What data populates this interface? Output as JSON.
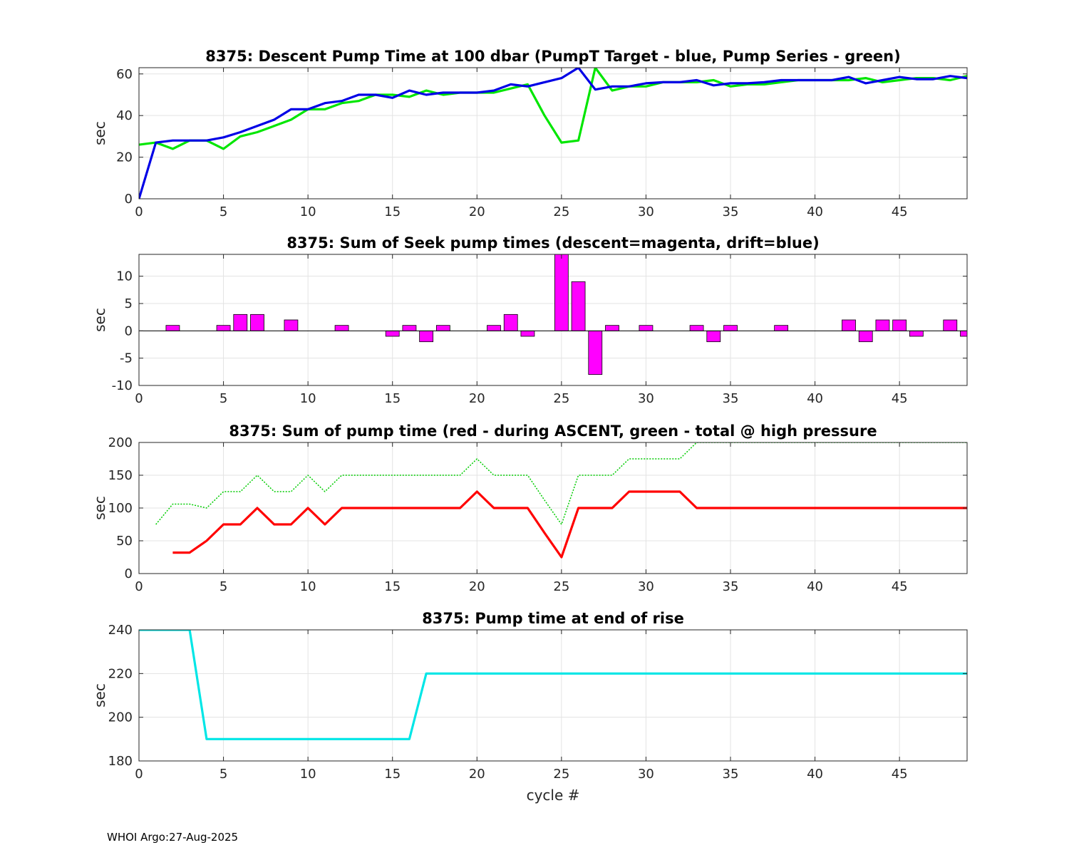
{
  "footer": "WHOI Argo:27-Aug-2025",
  "chart_data": [
    {
      "type": "line",
      "title": "8375: Descent Pump Time at 100 dbar (PumpT Target - blue, Pump Series - green)",
      "xlabel": "",
      "ylabel": "sec",
      "xlim": [
        0,
        49
      ],
      "ylim": [
        0,
        63
      ],
      "xticks": [
        0,
        5,
        10,
        15,
        20,
        25,
        30,
        35,
        40,
        45
      ],
      "yticks": [
        0,
        20,
        40,
        60
      ],
      "grid": true,
      "series": [
        {
          "color": "#00e600",
          "style": "solid",
          "x": [
            0,
            1,
            2,
            3,
            4,
            5,
            6,
            7,
            8,
            9,
            10,
            11,
            12,
            13,
            14,
            15,
            16,
            17,
            18,
            19,
            20,
            21,
            22,
            23,
            24,
            25,
            26,
            27,
            28,
            29,
            30,
            31,
            32,
            33,
            34,
            35,
            36,
            37,
            38,
            39,
            40,
            41,
            42,
            43,
            44,
            45,
            46,
            47,
            48,
            49
          ],
          "y": [
            26,
            27,
            24,
            28,
            28,
            24,
            30,
            32,
            35,
            38,
            43,
            43,
            46,
            47,
            50,
            50,
            49,
            52,
            50,
            51,
            51,
            51,
            53,
            55,
            40,
            27,
            28,
            63,
            52,
            54,
            54,
            56,
            56,
            56,
            57,
            54,
            55,
            55,
            56,
            57,
            57,
            57,
            57,
            58,
            56,
            57,
            58,
            58,
            57,
            59
          ]
        },
        {
          "color": "#0000e6",
          "style": "solid",
          "x": [
            0,
            1,
            2,
            3,
            4,
            5,
            6,
            7,
            8,
            9,
            10,
            11,
            12,
            13,
            14,
            15,
            16,
            17,
            18,
            19,
            20,
            21,
            22,
            23,
            24,
            25,
            26,
            27,
            28,
            29,
            30,
            31,
            32,
            33,
            34,
            35,
            36,
            37,
            38,
            39,
            40,
            41,
            42,
            43,
            44,
            45,
            46,
            47,
            48,
            49
          ],
          "y": [
            0,
            27,
            28,
            28,
            28,
            29.5,
            32,
            35,
            38,
            43,
            43,
            46,
            47,
            50,
            50,
            48.5,
            52,
            50,
            51,
            51,
            51,
            52,
            55,
            54,
            56,
            58,
            63,
            52.5,
            54,
            54,
            55.5,
            56,
            56,
            57,
            54.5,
            55.5,
            55.5,
            56,
            57,
            57,
            57,
            57,
            58.5,
            55.5,
            57,
            58.5,
            57.5,
            57.5,
            59,
            58
          ]
        }
      ]
    },
    {
      "type": "bar",
      "title": "8375: Sum of Seek pump times (descent=magenta, drift=blue)",
      "xlabel": "",
      "ylabel": "sec",
      "xlim": [
        0,
        49
      ],
      "ylim": [
        -10,
        14
      ],
      "xticks": [
        0,
        5,
        10,
        15,
        20,
        25,
        30,
        35,
        40,
        45
      ],
      "yticks": [
        -10,
        -5,
        0,
        5,
        10
      ],
      "grid": true,
      "series": [
        {
          "color": "#ff00ff",
          "x": [
            2,
            5,
            6,
            7,
            9,
            12,
            15,
            16,
            17,
            18,
            21,
            22,
            23,
            25,
            26,
            27,
            28,
            30,
            33,
            34,
            35,
            38,
            42,
            43,
            44,
            45,
            46,
            48,
            49
          ],
          "y": [
            1,
            1,
            3,
            3,
            2,
            1,
            -1,
            1,
            -2,
            1,
            1,
            3,
            -1,
            14,
            9,
            -8,
            1,
            1,
            1,
            -2,
            1,
            1,
            2,
            -2,
            2,
            2,
            -1,
            2,
            -1
          ]
        }
      ]
    },
    {
      "type": "line",
      "title": "8375: Sum of pump time (red - during ASCENT, green - total @ high pressure",
      "xlabel": "",
      "ylabel": "sec",
      "xlim": [
        0,
        49
      ],
      "ylim": [
        0,
        200
      ],
      "xticks": [
        0,
        5,
        10,
        15,
        20,
        25,
        30,
        35,
        40,
        45
      ],
      "yticks": [
        0,
        50,
        100,
        150,
        200
      ],
      "grid": true,
      "series": [
        {
          "color": "#00cc00",
          "style": "dotted",
          "x": [
            1,
            2,
            3,
            4,
            5,
            6,
            7,
            8,
            9,
            10,
            11,
            12,
            13,
            14,
            15,
            16,
            17,
            18,
            19,
            20,
            21,
            22,
            23,
            24,
            25,
            26,
            27,
            28,
            29,
            30,
            31,
            32,
            33,
            34,
            35,
            36,
            37,
            38,
            39,
            40,
            41,
            42,
            43,
            44,
            45,
            46,
            47,
            48,
            49
          ],
          "y": [
            75,
            106,
            106,
            100,
            125,
            125,
            150,
            125,
            125,
            150,
            125,
            150,
            150,
            150,
            150,
            150,
            150,
            150,
            150,
            175,
            150,
            150,
            150,
            112,
            75,
            150,
            150,
            150,
            175,
            175,
            175,
            175,
            200,
            200,
            200,
            200,
            200,
            200,
            200,
            200,
            200,
            200,
            200,
            200,
            200,
            200,
            200,
            200,
            200
          ]
        },
        {
          "color": "#ff0000",
          "style": "solid",
          "x": [
            2,
            3,
            4,
            5,
            6,
            7,
            8,
            9,
            10,
            11,
            12,
            13,
            14,
            15,
            16,
            17,
            18,
            19,
            20,
            21,
            22,
            23,
            24,
            25,
            26,
            27,
            28,
            29,
            30,
            31,
            32,
            33,
            34,
            35,
            36,
            37,
            38,
            39,
            40,
            41,
            42,
            43,
            44,
            45,
            46,
            47,
            48,
            49
          ],
          "y": [
            32,
            32,
            50,
            75,
            75,
            100,
            75,
            75,
            100,
            75,
            100,
            100,
            100,
            100,
            100,
            100,
            100,
            100,
            125,
            100,
            100,
            100,
            62,
            25,
            100,
            100,
            100,
            125,
            125,
            125,
            125,
            100,
            100,
            100,
            100,
            100,
            100,
            100,
            100,
            100,
            100,
            100,
            100,
            100,
            100,
            100,
            100,
            100
          ]
        }
      ]
    },
    {
      "type": "line",
      "title": "8375: Pump time at end of rise",
      "xlabel": "cycle #",
      "ylabel": "sec",
      "xlim": [
        0,
        49
      ],
      "ylim": [
        180,
        240
      ],
      "xticks": [
        0,
        5,
        10,
        15,
        20,
        25,
        30,
        35,
        40,
        45
      ],
      "yticks": [
        180,
        200,
        220,
        240
      ],
      "grid": true,
      "series": [
        {
          "color": "#00e6e6",
          "style": "solid",
          "x": [
            0,
            1,
            2,
            3,
            4,
            5,
            6,
            7,
            8,
            9,
            10,
            11,
            12,
            13,
            14,
            15,
            16,
            17,
            18,
            19,
            20,
            21,
            22,
            23,
            24,
            25,
            26,
            27,
            28,
            29,
            30,
            31,
            32,
            33,
            34,
            35,
            36,
            37,
            38,
            39,
            40,
            41,
            42,
            43,
            44,
            45,
            46,
            47,
            48,
            49
          ],
          "y": [
            240,
            240,
            240,
            240,
            190,
            190,
            190,
            190,
            190,
            190,
            190,
            190,
            190,
            190,
            190,
            190,
            190,
            220,
            220,
            220,
            220,
            220,
            220,
            220,
            220,
            220,
            220,
            220,
            220,
            220,
            220,
            220,
            220,
            220,
            220,
            220,
            220,
            220,
            220,
            220,
            220,
            220,
            220,
            220,
            220,
            220,
            220,
            220,
            220,
            220
          ]
        }
      ]
    }
  ]
}
